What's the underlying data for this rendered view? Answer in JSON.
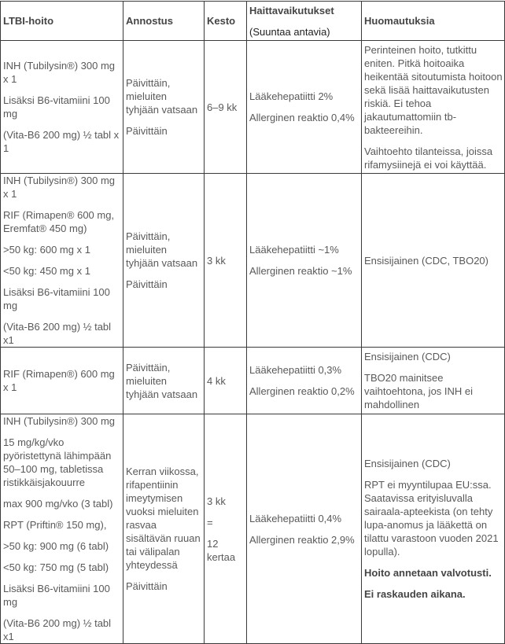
{
  "colors": {
    "background": "#ffffff",
    "border": "#3a3a3a",
    "body_text": "#595959",
    "header_text": "#1f1f1f",
    "bold_text": "#454545"
  },
  "table": {
    "header": [
      {
        "paragraphs": [
          {
            "text": "LTBI-hoito",
            "bold": true
          }
        ]
      },
      {
        "paragraphs": [
          {
            "text": "Annostus",
            "bold": true
          }
        ]
      },
      {
        "paragraphs": [
          {
            "text": "Kesto",
            "bold": true
          }
        ]
      },
      {
        "paragraphs": [
          {
            "text": "Haittavaikutukset",
            "bold": true
          },
          {
            "text": "(Suuntaa antavia)",
            "bold": false
          }
        ]
      },
      {
        "paragraphs": [
          {
            "text": "Huomautuksia",
            "bold": true
          }
        ]
      }
    ],
    "rows": [
      {
        "cells": [
          {
            "paragraphs": [
              {
                "text": "INH (Tubilysin®) 300 mg x 1"
              },
              {
                "text": "Lisäksi B6-vitamiini 100 mg"
              },
              {
                "text": "(Vita-B6 200 mg) ½ tabl x 1"
              }
            ]
          },
          {
            "paragraphs": [
              {
                "text": "Päivittäin, mieluiten tyhjään vatsaan"
              },
              {
                "text": "Päivittäin"
              }
            ]
          },
          {
            "paragraphs": [
              {
                "text": "6–9 kk"
              }
            ]
          },
          {
            "paragraphs": [
              {
                "text": "Lääkehepatiitti 2%"
              },
              {
                "text": "Allerginen reaktio 0,4%"
              }
            ]
          },
          {
            "paragraphs": [
              {
                "text": "Perinteinen hoito, tutkittu eniten. Pitkä hoitoaika heikentää sitoutumista hoitoon sekä lisää haittavaikutusten riskiä. Ei tehoa jakautumattomiin tb-bakteereihin."
              },
              {
                "text": "Vaihtoehto tilanteissa, joissa rifamysiinejä ei voi käyttää."
              }
            ]
          }
        ]
      },
      {
        "cells": [
          {
            "paragraphs": [
              {
                "text": "INH (Tubilysin®) 300 mg x 1"
              },
              {
                "text": "RIF (Rimapen® 600 mg, Eremfat® 450 mg)"
              },
              {
                "text": ">50 kg: 600 mg x 1"
              },
              {
                "text": "<50 kg: 450 mg x 1"
              },
              {
                "text": "Lisäksi B6-vitamiini 100 mg"
              },
              {
                "text": "(Vita-B6 200 mg) ½ tabl x1"
              }
            ]
          },
          {
            "paragraphs": [
              {
                "text": "Päivittäin, mieluiten tyhjään vatsaan"
              },
              {
                "text": "Päivittäin"
              }
            ]
          },
          {
            "paragraphs": [
              {
                "text": "3 kk"
              }
            ]
          },
          {
            "paragraphs": [
              {
                "text": "Lääkehepatiitti ~1%"
              },
              {
                "text": "Allerginen reaktio ~1%"
              }
            ]
          },
          {
            "paragraphs": [
              {
                "text": "Ensisijainen (CDC, TBO20)"
              }
            ]
          }
        ]
      },
      {
        "cells": [
          {
            "paragraphs": [
              {
                "text": "RIF (Rimapen®) 600 mg x 1"
              }
            ]
          },
          {
            "paragraphs": [
              {
                "text": "Päivittäin, mieluiten tyhjään vatsaan"
              }
            ]
          },
          {
            "paragraphs": [
              {
                "text": "4 kk"
              }
            ]
          },
          {
            "paragraphs": [
              {
                "text": "Lääkehepatiitti 0,3%"
              },
              {
                "text": "Allerginen reaktio 0,2%"
              }
            ]
          },
          {
            "paragraphs": [
              {
                "text": "Ensisijainen (CDC)"
              },
              {
                "text": "TBO20 mainitsee vaihtoehtona, jos INH ei mahdollinen"
              }
            ]
          }
        ]
      },
      {
        "cells": [
          {
            "paragraphs": [
              {
                "text": "INH (Tubilysin®) 300 mg"
              },
              {
                "text": "15 mg/kg/vko pyöristettynä lähimpään 50–100 mg, tabletissa ristikkäisjakouurre"
              },
              {
                "text": "max 900 mg/vko (3 tabl)"
              },
              {
                "text": "RPT (Priftin® 150 mg),"
              },
              {
                "text": ">50 kg: 900 mg (6 tabl)"
              },
              {
                "text": "<50 kg: 750 mg (5 tabl)"
              },
              {
                "text": "Lisäksi B6-vitamiini 100 mg"
              },
              {
                "text": "(Vita-B6 200 mg) ½ tabl x1"
              }
            ]
          },
          {
            "paragraphs": [
              {
                "text": "Kerran viikossa, rifapentiinin imeytymisen vuoksi mieluiten rasvaa sisältävän ruuan tai välipalan yhteydessä"
              },
              {
                "text": "Päivittäin"
              }
            ]
          },
          {
            "paragraphs": [
              {
                "text": "3 kk"
              },
              {
                "text": "="
              },
              {
                "text": "12 kertaa"
              }
            ]
          },
          {
            "paragraphs": [
              {
                "text": "Lääkehepatiitti 0,4%"
              },
              {
                "text": "Allerginen reaktio 2,9%"
              }
            ]
          },
          {
            "paragraphs": [
              {
                "text": "Ensisijainen (CDC)"
              },
              {
                "text": "RPT ei myyntilupaa EU:ssa. Saatavissa erityisluvalla sairaala-apteekista (on tehty lupa-anomus ja lääkettä on tilattu varastoon vuoden 2021 lopulla)."
              },
              {
                "text": "Hoito annetaan valvotusti.",
                "bold": true
              },
              {
                "text": "Ei raskauden aikana.",
                "bold": true
              }
            ]
          }
        ]
      }
    ]
  }
}
